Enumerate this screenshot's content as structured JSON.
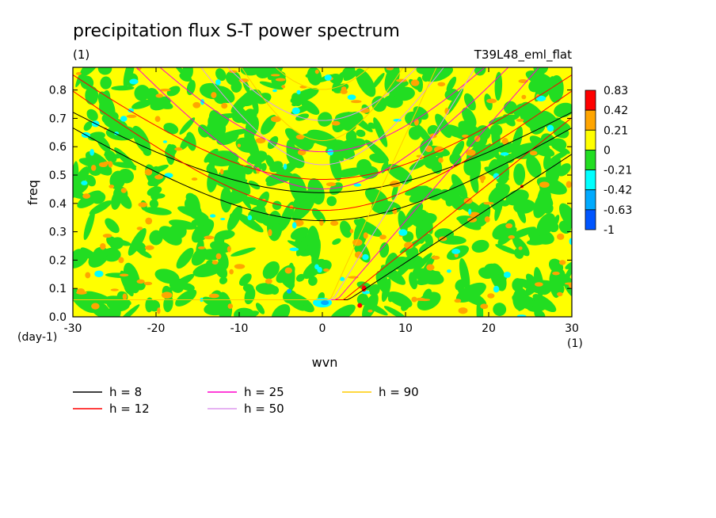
{
  "chart_data": {
    "type": "heatmap",
    "title": "precipitation flux S-T power spectrum",
    "subtitle_left": "(1)",
    "subtitle_right": "T39L48_eml_flat",
    "xlabel": "wvn",
    "ylabel": "freq",
    "x_unit": "(1)",
    "y_unit": "(day-1)",
    "xlim": [
      -30,
      30
    ],
    "ylim": [
      0.0,
      0.88
    ],
    "x_ticks": [
      "-30",
      "-20",
      "-10",
      "0",
      "10",
      "20",
      "30"
    ],
    "y_ticks": [
      "0.0",
      "0.1",
      "0.2",
      "0.3",
      "0.4",
      "0.5",
      "0.6",
      "0.7",
      "0.8"
    ],
    "colorbar": {
      "levels": [
        "0.83",
        "0.42",
        "0.21",
        "0",
        "-0.21",
        "-0.42",
        "-0.63",
        "-1"
      ],
      "colors": [
        "#ff0000",
        "#ffa500",
        "#ffff00",
        "#22dd22",
        "#00ffff",
        "#00aaff",
        "#0055ff"
      ]
    },
    "series": [
      {
        "name": "h =  8",
        "color": "#000000",
        "equivalent_depth_m": 8
      },
      {
        "name": "h = 12",
        "color": "#ff0000",
        "equivalent_depth_m": 12
      },
      {
        "name": "h = 25",
        "color": "#ff00cc",
        "equivalent_depth_m": 25
      },
      {
        "name": "h = 50",
        "color": "#dd99ee",
        "equivalent_depth_m": 50
      },
      {
        "name": "h = 90",
        "color": "#ffcc00",
        "equivalent_depth_m": 90
      }
    ],
    "dispersion_curves_shown": [
      "kelvin",
      "inertio-gravity n=1",
      "inertio-gravity n=2"
    ],
    "field_background": "mostly 0 to 0.21 (yellow) with patches of -0.21 to 0 (green) and scattered 0.21-0.42 (orange) and negative anomalies near wvn 0, freq 0.05"
  }
}
